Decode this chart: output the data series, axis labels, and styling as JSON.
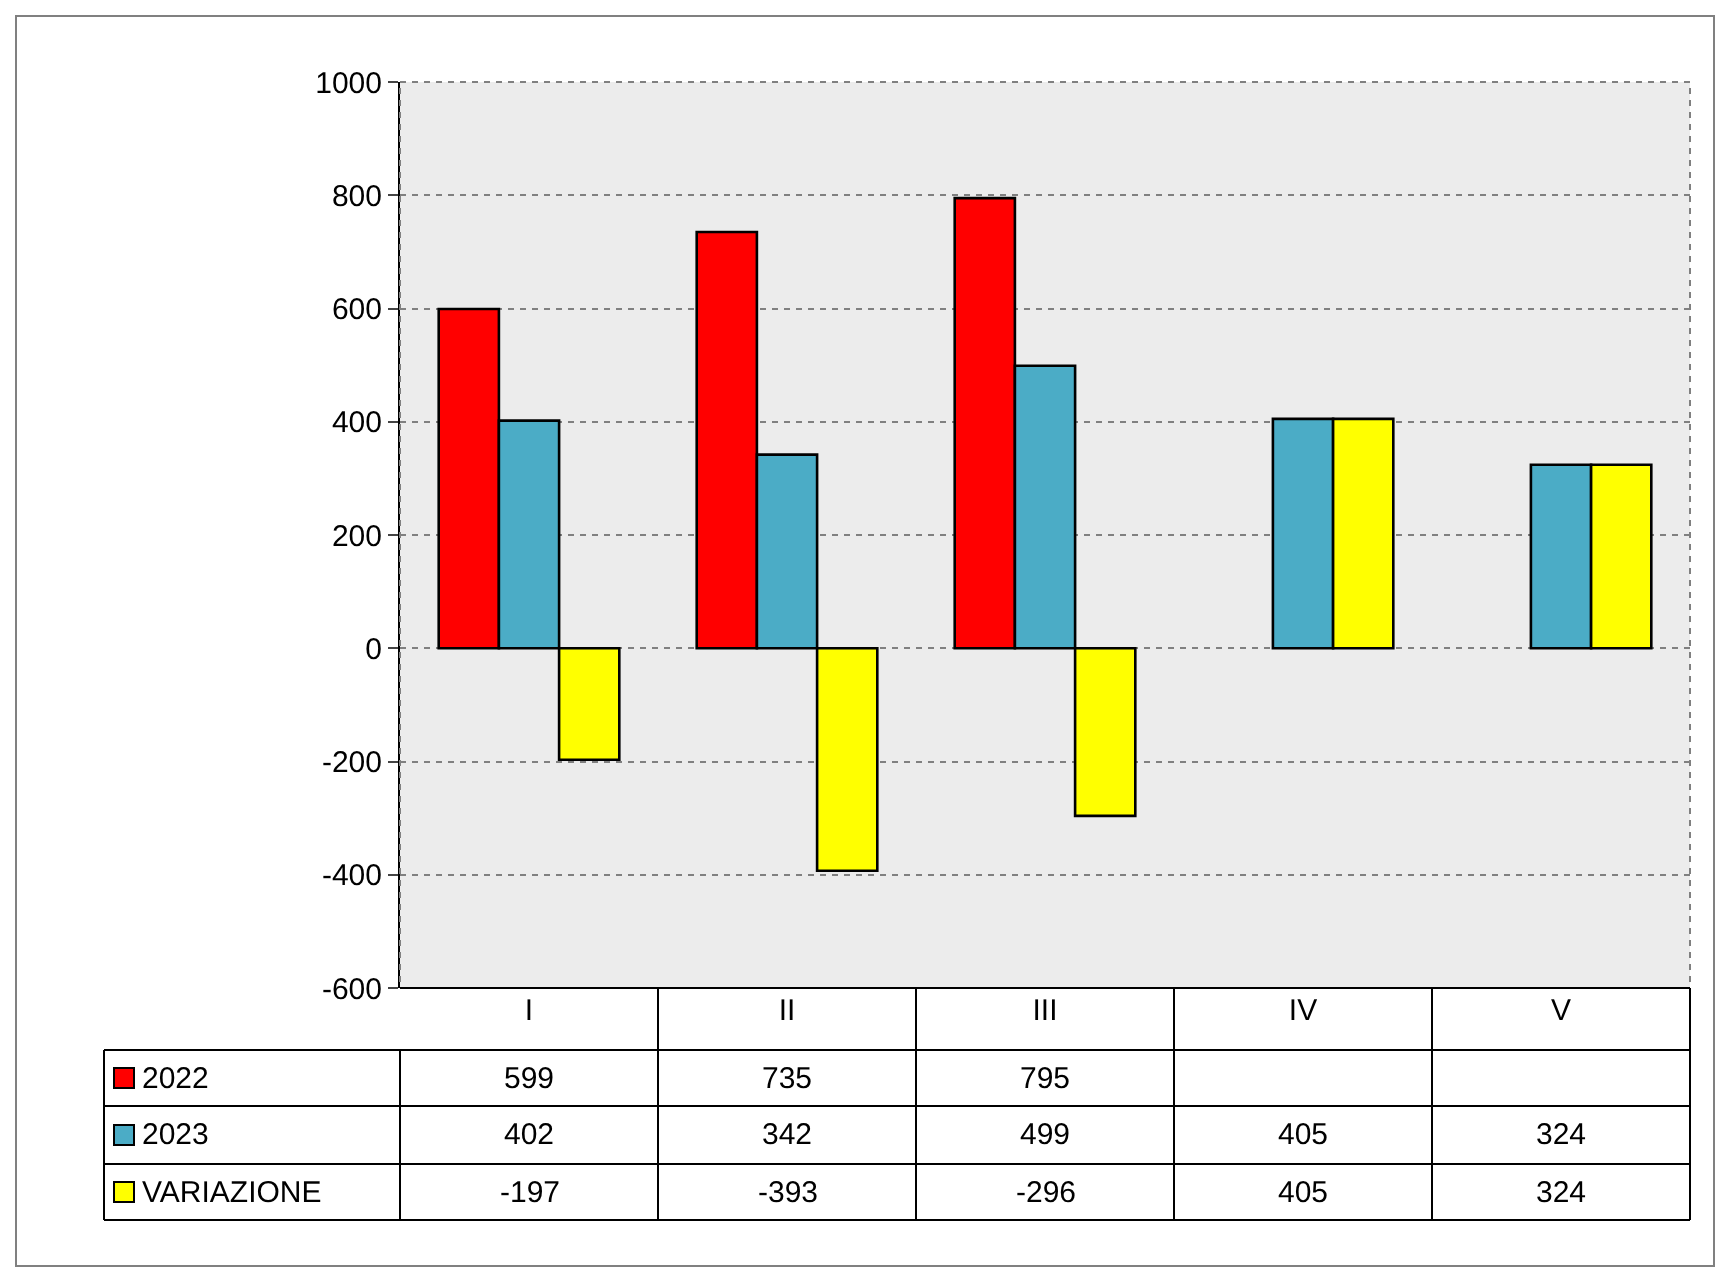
{
  "chart_data": {
    "type": "bar",
    "categories": [
      "I",
      "II",
      "III",
      "IV",
      "V"
    ],
    "series": [
      {
        "name": "2022",
        "color": "#ff0000",
        "values": [
          599,
          735,
          795,
          null,
          null
        ]
      },
      {
        "name": "2023",
        "color": "#4bacc6",
        "values": [
          402,
          342,
          499,
          405,
          324
        ]
      },
      {
        "name": "VARIAZIONE",
        "color": "#ffff00",
        "values": [
          -197,
          -393,
          -296,
          405,
          324
        ]
      }
    ],
    "ylim": [
      -600,
      1000
    ],
    "yticks": [
      -600,
      -400,
      -200,
      0,
      200,
      400,
      600,
      800,
      1000
    ],
    "grid": "y",
    "legend": "bottom left",
    "data_labels": true
  }
}
